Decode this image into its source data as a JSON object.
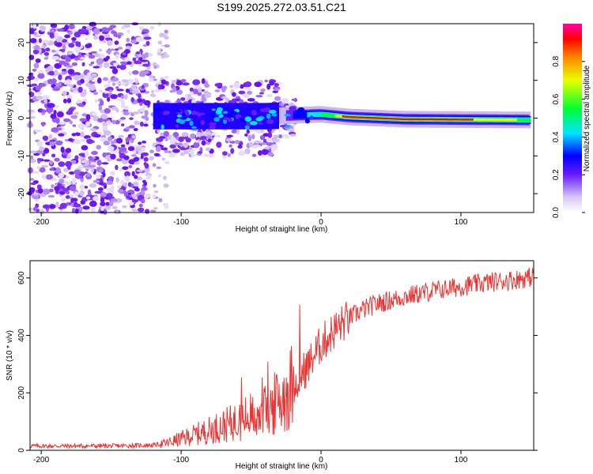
{
  "title": "S199.2025.272.03.51.C21",
  "chart_data": [
    {
      "type": "heatmap",
      "title": "S199.2025.272.03.51.C21",
      "xlabel": "Height of straight line (km)",
      "ylabel": "Frequency (Hz)",
      "xlim": [
        -208,
        152
      ],
      "ylim": [
        -25,
        25
      ],
      "xticks": [
        "-200",
        "-100",
        "0",
        "100"
      ],
      "yticks": [
        "-20",
        "-10",
        "0",
        "10",
        "20"
      ],
      "colorbar": {
        "label": "Normalized spectral amplitude",
        "range": [
          0,
          1
        ],
        "ticks": [
          "0.0",
          "0.2",
          "0.4",
          "0.6",
          "0.8"
        ]
      },
      "trace_center_hz": [
        {
          "x": -200,
          "y": 0
        },
        {
          "x": -120,
          "y": 0.5
        },
        {
          "x": -40,
          "y": 0.5
        },
        {
          "x": 0,
          "y": 1
        },
        {
          "x": 20,
          "y": 0.3
        },
        {
          "x": 60,
          "y": -0.3
        },
        {
          "x": 150,
          "y": -0.5
        }
      ]
    },
    {
      "type": "line",
      "xlabel": "Height of straight line (km)",
      "ylabel": "SNR (10 * v/v)",
      "xlim": [
        -208,
        152
      ],
      "ylim": [
        0,
        660
      ],
      "xticks": [
        "-200",
        "-100",
        "0",
        "100"
      ],
      "yticks": [
        "0",
        "200",
        "400",
        "600"
      ],
      "series": [
        {
          "name": "SNR",
          "color": "#ee3333",
          "x": [
            -208,
            -180,
            -150,
            -120,
            -110,
            -100,
            -80,
            -60,
            -40,
            -30,
            -20,
            -10,
            0,
            10,
            20,
            30,
            40,
            60,
            80,
            100,
            120,
            140,
            152
          ],
          "y": [
            15,
            15,
            15,
            18,
            25,
            40,
            70,
            100,
            140,
            170,
            230,
            290,
            370,
            420,
            460,
            490,
            510,
            535,
            555,
            570,
            585,
            595,
            605
          ]
        }
      ]
    }
  ]
}
